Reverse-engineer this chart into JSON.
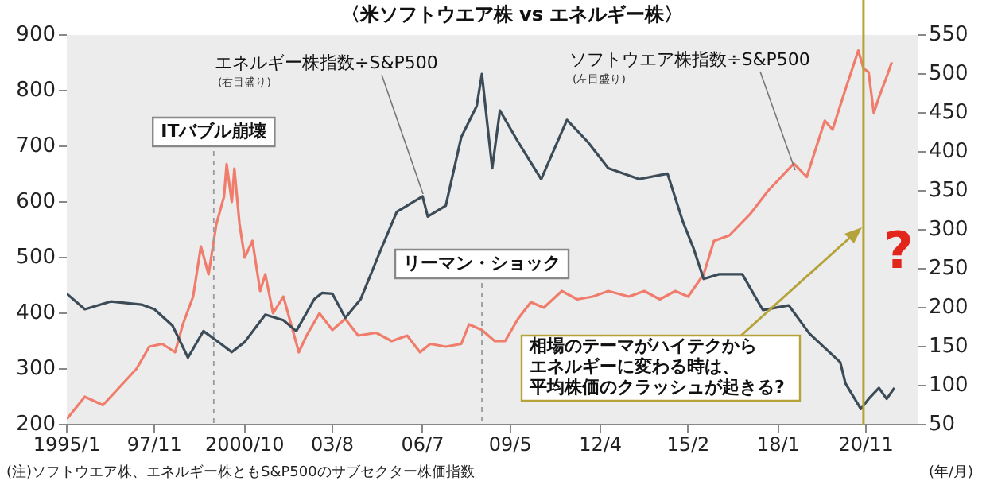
{
  "chart_data": {
    "type": "line",
    "title": "〈米ソフトウエア株 vs エネルギー株〉",
    "xlabel": "(年/月)",
    "xlim": [
      "1995-01",
      "2022-07"
    ],
    "xticks": [
      {
        "value": "1995-01",
        "label": "1995/1"
      },
      {
        "value": "1997-11",
        "label": "97/11"
      },
      {
        "value": "2000-10",
        "label": "2000/10"
      },
      {
        "value": "2003-08",
        "label": "03/8"
      },
      {
        "value": "2006-07",
        "label": "06/7"
      },
      {
        "value": "2009-05",
        "label": "09/5"
      },
      {
        "value": "2012-04",
        "label": "12/4"
      },
      {
        "value": "2015-02",
        "label": "15/2"
      },
      {
        "value": "2018-01",
        "label": "18/1"
      },
      {
        "value": "2020-11",
        "label": "20/11"
      }
    ],
    "ylim": [
      200,
      900
    ],
    "yticks": [
      200,
      300,
      400,
      500,
      600,
      700,
      800,
      900
    ],
    "y2lim": [
      50,
      550
    ],
    "y2ticks": [
      50,
      100,
      150,
      200,
      250,
      300,
      350,
      400,
      450,
      500,
      550
    ],
    "grid": false,
    "legend": false,
    "series": [
      {
        "name": "エネルギー株指数÷S&P500",
        "color": "#3b4b57",
        "axis": "y2",
        "x": [
          "1995-01",
          "1995-08",
          "1996-06",
          "1997-06",
          "1997-11",
          "1998-06",
          "1998-12",
          "1999-06",
          "2000-01",
          "2000-05",
          "2000-10",
          "2001-06",
          "2002-01",
          "2002-06",
          "2003-01",
          "2003-04",
          "2003-08",
          "2004-01",
          "2004-07",
          "2005-03",
          "2005-09",
          "2006-07",
          "2006-09",
          "2007-04",
          "2007-10",
          "2008-04",
          "2008-06",
          "2008-08",
          "2008-10",
          "2009-01",
          "2009-08",
          "2010-05",
          "2011-03",
          "2011-11",
          "2012-07",
          "2013-07",
          "2014-06",
          "2014-12",
          "2015-04",
          "2015-08",
          "2016-02",
          "2016-11",
          "2017-07",
          "2018-05",
          "2019-01",
          "2020-01",
          "2020-03",
          "2020-09",
          "2020-12",
          "2021-04",
          "2021-07",
          "2021-10"
        ],
        "values": [
          218,
          198,
          208,
          204,
          198,
          177,
          136,
          170,
          153,
          143,
          156,
          191,
          184,
          170,
          211,
          219,
          218,
          187,
          211,
          276,
          323,
          343,
          317,
          331,
          419,
          459,
          500,
          439,
          379,
          453,
          413,
          365,
          441,
          413,
          379,
          365,
          372,
          310,
          277,
          237,
          243,
          243,
          197,
          203,
          167,
          130,
          103,
          70,
          83,
          97,
          83,
          97
        ]
      },
      {
        "name": "ソフトウエア株指数÷S&P500",
        "color": "#f07c6c",
        "x": [
          "1995-01",
          "1995-08",
          "1996-03",
          "1996-09",
          "1997-04",
          "1997-09",
          "1998-02",
          "1998-07",
          "1998-10",
          "1999-02",
          "1999-05",
          "1999-08",
          "1999-11",
          "2000-02",
          "2000-03",
          "2000-05",
          "2000-06",
          "2000-08",
          "2000-10",
          "2001-01",
          "2001-04",
          "2001-06",
          "2001-09",
          "2002-01",
          "2002-04",
          "2002-07",
          "2002-10",
          "2003-03",
          "2003-08",
          "2004-01",
          "2004-06",
          "2005-01",
          "2005-07",
          "2006-01",
          "2006-06",
          "2006-10",
          "2007-04",
          "2007-10",
          "2008-01",
          "2008-06",
          "2008-11",
          "2009-03",
          "2009-08",
          "2010-01",
          "2010-06",
          "2011-01",
          "2011-07",
          "2012-01",
          "2012-07",
          "2013-03",
          "2013-09",
          "2014-03",
          "2014-09",
          "2015-02",
          "2015-08",
          "2015-12",
          "2016-06",
          "2017-02",
          "2017-09",
          "2018-07",
          "2018-12",
          "2019-07",
          "2019-10",
          "2020-03",
          "2020-08",
          "2020-10",
          "2020-12",
          "2021-02",
          "2021-04",
          "2021-07",
          "2021-09"
        ],
        "values": [
          210,
          250,
          235,
          265,
          300,
          340,
          345,
          330,
          380,
          430,
          520,
          470,
          560,
          610,
          668,
          600,
          660,
          560,
          500,
          530,
          440,
          470,
          400,
          430,
          380,
          330,
          360,
          400,
          370,
          390,
          360,
          365,
          350,
          360,
          330,
          345,
          340,
          345,
          380,
          370,
          350,
          350,
          390,
          420,
          410,
          440,
          425,
          430,
          440,
          430,
          440,
          425,
          440,
          430,
          470,
          530,
          540,
          578,
          620,
          669,
          645,
          746,
          730,
          802,
          872,
          840,
          833,
          760,
          788,
          825,
          851
        ]
      }
    ],
    "ref_lines": [
      {
        "axis": "x",
        "value": "1999-10",
        "label": "ITバブル崩壊",
        "color": "#9a9a9a",
        "line_style": "dashed"
      },
      {
        "axis": "x",
        "value": "2008-06",
        "label": "リーマン・ショック",
        "color": "#9a9a9a",
        "line_style": "dashed"
      },
      {
        "axis": "x",
        "value": "2020-10",
        "color": "#b5a33a",
        "line_style": "solid"
      }
    ],
    "annotations": [
      "(右目盛り)",
      "(左目盛り)",
      "相場のテーマがハイテクから",
      "エネルギーに変わる時は、",
      "平均株価のクラッシュが起きる?",
      "?",
      "(注)ソフトウエア株、エネルギー株ともS&P500のサブセクター株価指数"
    ]
  }
}
